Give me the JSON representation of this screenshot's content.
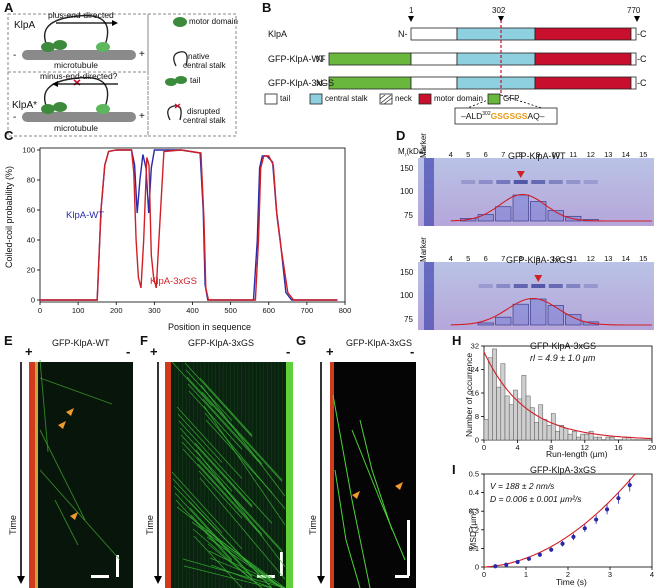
{
  "panelA": {
    "label": "A",
    "klpA": "KlpA",
    "klpAstar": "KlpA*",
    "plus_dir": "plus-end-directed",
    "minus_dir": "minus-end-directed?",
    "microtubule": "microtubule",
    "plus": "+",
    "minus": "-",
    "legend_motor": "motor domain",
    "legend_native": "native",
    "legend_native2": "central stalk",
    "legend_tail": "tail",
    "legend_disrupted": "disrupted",
    "legend_disrupted2": "central stalk"
  },
  "panelB": {
    "label": "B",
    "pos1": "1",
    "pos302": "302",
    "pos770": "770",
    "rows": [
      "KlpA",
      "GFP-KlpA-WT",
      "GFP-KlpA-3xGS"
    ],
    "nterm": "N-",
    "cterm": "-C",
    "legend": [
      "tail",
      "central stalk",
      "neck",
      "motor domain",
      "GFP"
    ],
    "seq_prefix": "–ALD",
    "seq_sup": "302",
    "seq_gs": "GSGSGS",
    "seq_suffix": "AQ–"
  },
  "panelC": {
    "label": "C",
    "ylabel": "Coiled-coil probability (%)",
    "xlabel": "Position in sequence",
    "series_wt": "KlpA-WT",
    "series_gs": "KlpA-3xGS"
  },
  "panelD": {
    "label": "D",
    "mr": "Mr(kDa)",
    "marker": "Marker",
    "top_title": "GFP-KlpA-WT",
    "bottom_title": "GFP-KlpA-3xGS",
    "lanes": [
      "4",
      "5",
      "6",
      "7",
      "8",
      "9",
      "10",
      "11",
      "12",
      "13",
      "14",
      "15"
    ],
    "mw": [
      "150",
      "100",
      "75"
    ]
  },
  "panelE": {
    "label": "E",
    "title": "GFP-KlpA-WT",
    "plus": "+",
    "minus": "-",
    "time": "Time"
  },
  "panelF": {
    "label": "F",
    "title": "GFP-KlpA-3xGS",
    "plus": "+",
    "minus": "-",
    "time": "Time"
  },
  "panelG": {
    "label": "G",
    "title": "GFP-KlpA-3xGS",
    "plus": "+",
    "minus": "-",
    "time": "Time"
  },
  "panelH": {
    "label": "H",
    "title": "GFP-KlpA-3xGS",
    "annotation": "rl = 4.9 ± 1.0 µm",
    "ylabel": "Number of occurrence",
    "xlabel": "Run-length (µm)"
  },
  "panelI": {
    "label": "I",
    "title": "GFP-KlpA-3xGS",
    "ann_v": "V = 188 ± 2 nm/s",
    "ann_d": "D = 0.006 ± 0.001 µm²/s",
    "ylabel": "MSD (µm²)",
    "xlabel": "Time (s)"
  },
  "colors": {
    "tail": "#ffffff",
    "stalk": "#8fd0e0",
    "motor": "#c8102e",
    "gfp": "#6ab73d",
    "seq_gs": "#e89a1c",
    "wt_line": "#2a2aa8",
    "gs_line": "#d11f26",
    "kymo_bg": "#0a1a06",
    "kymo_green": "#4cd43a",
    "arrowhead": "#f29a2e"
  },
  "chart_data": [
    {
      "id": "C",
      "type": "line",
      "xlabel": "Position in sequence",
      "ylabel": "Coiled-coil probability (%)",
      "xlim": [
        0,
        800
      ],
      "ylim": [
        0,
        100
      ],
      "xticks": [
        0,
        100,
        200,
        300,
        400,
        500,
        600,
        700,
        800
      ],
      "yticks": [
        0,
        20,
        40,
        60,
        80,
        100
      ],
      "series": [
        {
          "name": "KlpA-WT",
          "x": [
            0,
            150,
            160,
            170,
            180,
            200,
            240,
            248,
            255,
            262,
            270,
            278,
            285,
            292,
            300,
            310,
            330,
            370,
            420,
            428,
            433,
            440,
            460,
            560,
            570,
            576,
            583,
            595,
            610,
            620,
            630,
            645,
            660,
            780
          ],
          "y": [
            0,
            0,
            60,
            90,
            99,
            100,
            100,
            90,
            58,
            80,
            97,
            88,
            58,
            88,
            100,
            100,
            100,
            100,
            98,
            60,
            10,
            0,
            0,
            0,
            40,
            88,
            96,
            96,
            92,
            60,
            40,
            5,
            0,
            0
          ]
        },
        {
          "name": "KlpA-3xGS",
          "x": [
            0,
            150,
            160,
            170,
            180,
            200,
            240,
            246,
            252,
            258,
            265,
            272,
            280,
            286,
            292,
            298,
            305,
            312,
            325,
            370,
            422,
            430,
            435,
            442,
            460,
            565,
            573,
            579,
            587,
            600,
            612,
            622,
            632,
            650,
            665,
            780
          ],
          "y": [
            0,
            0,
            60,
            90,
            99,
            100,
            100,
            85,
            40,
            15,
            8,
            40,
            95,
            90,
            30,
            15,
            8,
            40,
            99,
            100,
            98,
            55,
            8,
            0,
            0,
            0,
            40,
            88,
            96,
            96,
            90,
            55,
            35,
            5,
            0,
            0
          ]
        }
      ]
    },
    {
      "id": "D-top",
      "type": "bar",
      "title": "GFP-KlpA-WT",
      "categories": [
        "4",
        "5",
        "6",
        "7",
        "8",
        "9",
        "10",
        "11",
        "12",
        "13",
        "14",
        "15"
      ],
      "values": [
        0,
        10,
        25,
        55,
        100,
        75,
        40,
        18,
        6,
        0,
        0,
        0
      ]
    },
    {
      "id": "D-bottom",
      "type": "bar",
      "title": "GFP-KlpA-3xGS",
      "categories": [
        "4",
        "5",
        "6",
        "7",
        "8",
        "9",
        "10",
        "11",
        "12",
        "13",
        "14",
        "15"
      ],
      "values": [
        0,
        0,
        8,
        30,
        80,
        100,
        75,
        40,
        12,
        0,
        0,
        0
      ]
    },
    {
      "id": "H",
      "type": "bar",
      "title": "GFP-KlpA-3xGS",
      "xlabel": "Run-length (µm)",
      "ylabel": "Number of occurrence",
      "xlim": [
        0,
        20
      ],
      "ylim": [
        0,
        32
      ],
      "xticks": [
        0,
        4,
        8,
        12,
        16,
        20
      ],
      "yticks": [
        0,
        8,
        16,
        24,
        32
      ],
      "bin_width": 0.5,
      "values": [
        7,
        28,
        31,
        18,
        26,
        15,
        12,
        17,
        14,
        22,
        15,
        11,
        6,
        12,
        7,
        5,
        9,
        3,
        5,
        4,
        2,
        3,
        1,
        2,
        2,
        3,
        1,
        1,
        0,
        1,
        1,
        0,
        0,
        1,
        1,
        0,
        0,
        0,
        0,
        0
      ],
      "fit_decay_length": 4.9
    },
    {
      "id": "I",
      "type": "scatter",
      "title": "GFP-KlpA-3xGS",
      "xlabel": "Time (s)",
      "ylabel": "MSD (µm²)",
      "xlim": [
        0,
        4
      ],
      "ylim": [
        0,
        0.5
      ],
      "xticks": [
        0,
        1,
        2,
        3,
        4
      ],
      "yticks": [
        0,
        0.1,
        0.2,
        0.3,
        0.4,
        0.5
      ],
      "x": [
        0.27,
        0.53,
        0.8,
        1.07,
        1.33,
        1.6,
        1.87,
        2.13,
        2.4,
        2.67,
        2.93,
        3.2,
        3.47
      ],
      "y": [
        0.004,
        0.012,
        0.027,
        0.044,
        0.066,
        0.093,
        0.125,
        0.162,
        0.208,
        0.255,
        0.31,
        0.37,
        0.44
      ],
      "err": [
        0.002,
        0.004,
        0.006,
        0.008,
        0.01,
        0.012,
        0.015,
        0.018,
        0.02,
        0.024,
        0.027,
        0.03,
        0.034
      ],
      "fit_V": 0.188,
      "fit_D": 0.006
    }
  ]
}
